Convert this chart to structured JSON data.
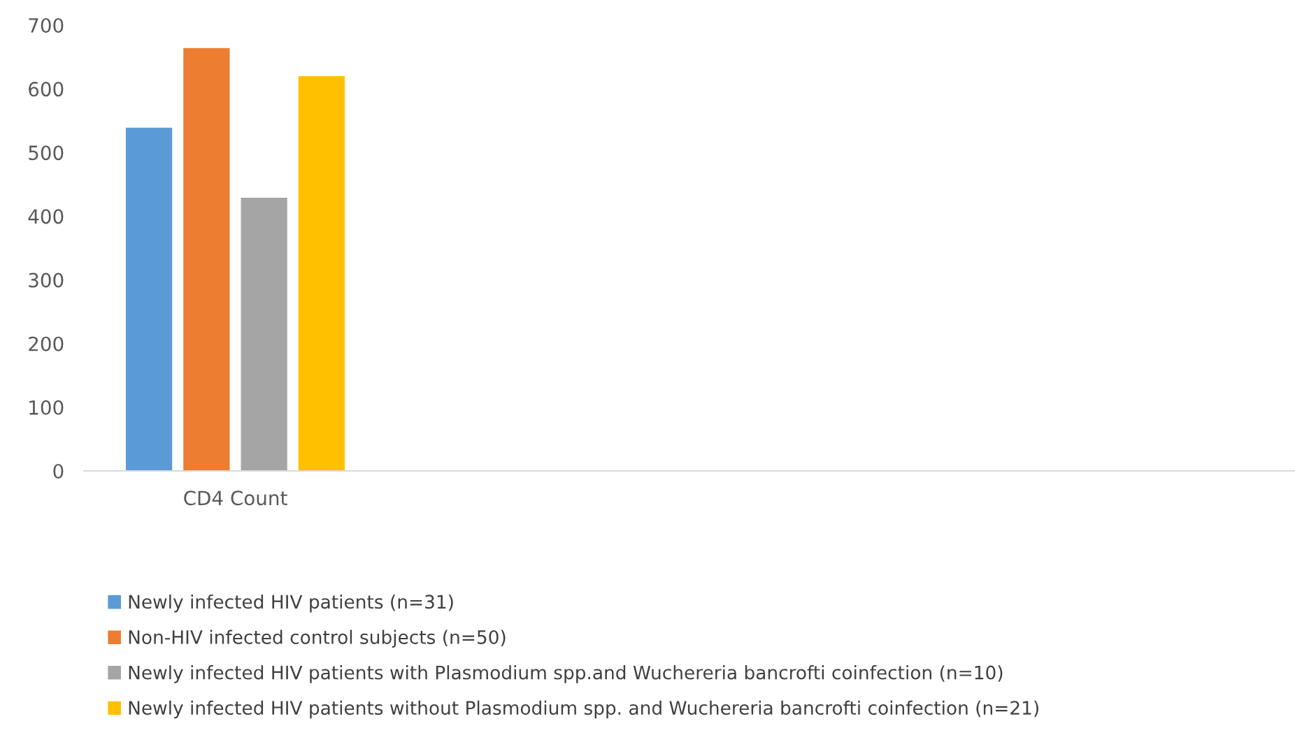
{
  "chart_data": {
    "type": "bar",
    "categories": [
      "CD4 Count",
      null,
      null,
      null
    ],
    "series": [
      {
        "name": "Newly infected HIV patients (n=31)",
        "color": "#5b9bd5",
        "values": [
          539,
          null,
          null,
          null
        ]
      },
      {
        "name": "Non-HIV infected control subjects (n=50)",
        "color": "#ed7d31",
        "values": [
          664,
          null,
          null,
          null
        ]
      },
      {
        "name": "Newly infected HIV patients with Plasmodium spp.and Wuchereria bancrofti coinfection (n=10)",
        "color": "#a5a5a5",
        "values": [
          429,
          null,
          null,
          null
        ]
      },
      {
        "name": "Newly infected HIV patients without Plasmodium spp. and Wuchereria bancrofti coinfection (n=21)",
        "color": "#ffc000",
        "values": [
          620,
          null,
          null,
          null
        ]
      }
    ],
    "ylim": [
      0,
      700
    ],
    "yticks": [
      0,
      100,
      200,
      300,
      400,
      500,
      600,
      700
    ],
    "grid": false,
    "legend": "bottom"
  }
}
